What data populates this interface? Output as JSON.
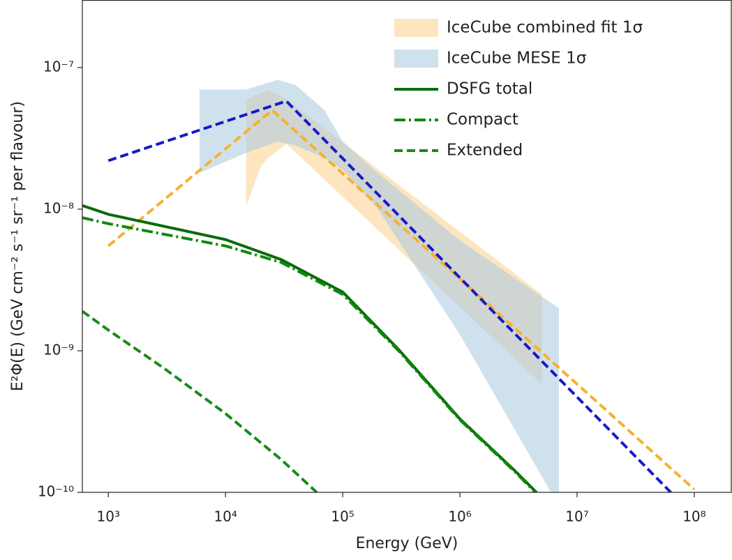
{
  "chart_data": {
    "type": "line",
    "x_label": "Energy (GeV)",
    "y_label": "E²Φ(E) (GeV cm⁻² s⁻¹ sr⁻¹ per flavour)",
    "xscale": "log",
    "yscale": "log",
    "xlim": [
      600,
      207000000
    ],
    "ylim": [
      1e-10,
      3e-07
    ],
    "xticks": [
      {
        "value": 1000,
        "label": "10³"
      },
      {
        "value": 10000,
        "label": "10⁴"
      },
      {
        "value": 100000,
        "label": "10⁵"
      },
      {
        "value": 1000000,
        "label": "10⁶"
      },
      {
        "value": 10000000,
        "label": "10⁷"
      },
      {
        "value": 100000000,
        "label": "10⁸"
      }
    ],
    "yticks": [
      {
        "value": 1e-10,
        "label": "10⁻¹⁰"
      },
      {
        "value": 1e-09,
        "label": "10⁻⁹"
      },
      {
        "value": 1e-08,
        "label": "10⁻⁸"
      },
      {
        "value": 1e-07,
        "label": "10⁻⁷"
      }
    ],
    "legend": "upper right",
    "series": [
      {
        "name": "IceCube combined fit 1σ",
        "kind": "band",
        "color": "#fcd08c",
        "x": [
          15000,
          20000,
          23000,
          33000,
          5000000
        ],
        "upper": [
          6e-08,
          6.6e-08,
          7e-08,
          6e-08,
          2.5e-09
        ],
        "lower": [
          1.05e-08,
          2e-08,
          2.3e-08,
          2.9e-08,
          5.8e-10
        ]
      },
      {
        "name": "IceCube MESE 1σ",
        "kind": "band",
        "color": "#a9c9e0",
        "x": [
          6000,
          15000,
          28000,
          40000,
          70000,
          100000,
          200000,
          1000000,
          7000000
        ],
        "upper": [
          7e-08,
          7e-08,
          8.2e-08,
          7.5e-08,
          5e-08,
          3e-08,
          1.8e-08,
          6e-09,
          2e-09
        ],
        "lower": [
          1.8e-08,
          2.5e-08,
          3e-08,
          2.8e-08,
          2.3e-08,
          1.9e-08,
          1e-08,
          1.3e-09,
          8e-11
        ]
      },
      {
        "kind": "line",
        "dash": "dashed",
        "color": "#f5b22e",
        "x": [
          1000,
          25000,
          100000000
        ],
        "values": [
          5.5e-09,
          5e-08,
          1.05e-10
        ]
      },
      {
        "kind": "line",
        "dash": "dashed",
        "color": "#1818c8",
        "x": [
          1000,
          33000,
          63000000
        ],
        "values": [
          2.2e-08,
          5.8e-08,
          1e-10
        ]
      },
      {
        "name": "DSFG total",
        "kind": "line",
        "dash": "solid",
        "color": "#0b6b0b",
        "x": [
          600,
          1000,
          10000,
          30000,
          100000,
          300000,
          1000000,
          3000000,
          4500000
        ],
        "values": [
          1.06e-08,
          9.2e-09,
          6.1e-09,
          4.4e-09,
          2.6e-09,
          1.02e-09,
          3.3e-10,
          1.4e-10,
          1e-10
        ]
      },
      {
        "name": "Compact",
        "kind": "line",
        "dash": "dashdot",
        "color": "#0b8a0b",
        "x": [
          600,
          1000,
          10000,
          30000,
          100000,
          300000,
          1000000,
          3000000,
          4500000
        ],
        "values": [
          8.7e-09,
          7.9e-09,
          5.5e-09,
          4.2e-09,
          2.5e-09,
          1e-09,
          3.25e-10,
          1.38e-10,
          9.8e-11
        ]
      },
      {
        "name": "Extended",
        "kind": "line",
        "dash": "dashed",
        "color": "#1a8a1a",
        "x": [
          600,
          1000,
          3000,
          10000,
          30000,
          60000
        ],
        "values": [
          1.9e-09,
          1.4e-09,
          7.5e-10,
          3.6e-10,
          1.7e-10,
          1e-10
        ]
      }
    ]
  }
}
